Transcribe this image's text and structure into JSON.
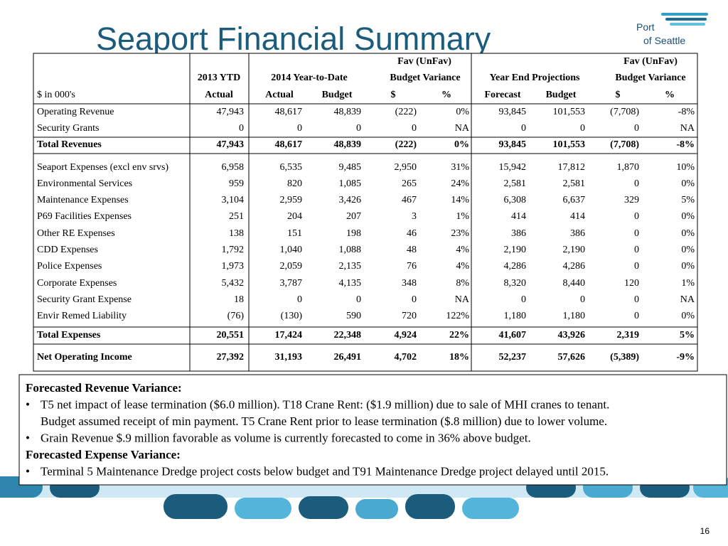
{
  "title": "Seaport Financial Summary",
  "logo": {
    "line1": "Port",
    "line2": "of Seattle"
  },
  "table": {
    "header": {
      "row1": [
        "Fav (UnFav)",
        "Fav (UnFav)"
      ],
      "row2": [
        "2013 YTD",
        "2014 Year-to-Date",
        "Budget Variance",
        "Year End Projections",
        "Budget Variance"
      ],
      "row3": [
        "$ in 000's",
        "Actual",
        "Actual",
        "Budget",
        "$",
        "%",
        "Forecast",
        "Budget",
        "$",
        "%"
      ]
    },
    "rows": [
      [
        "Operating Revenue",
        "47,943",
        "48,617",
        "48,839",
        "(222)",
        "0%",
        "93,845",
        "101,553",
        "(7,708)",
        "-8%"
      ],
      [
        "Security Grants",
        "0",
        "0",
        "0",
        "0",
        "NA",
        "0",
        "0",
        "0",
        "NA"
      ],
      [
        "Total Revenues",
        "47,943",
        "48,617",
        "48,839",
        "(222)",
        "0%",
        "93,845",
        "101,553",
        "(7,708)",
        "-8%"
      ],
      [
        "Seaport Expenses (excl env srvs)",
        "6,958",
        "6,535",
        "9,485",
        "2,950",
        "31%",
        "15,942",
        "17,812",
        "1,870",
        "10%"
      ],
      [
        "Environmental Services",
        "959",
        "820",
        "1,085",
        "265",
        "24%",
        "2,581",
        "2,581",
        "0",
        "0%"
      ],
      [
        "Maintenance Expenses",
        "3,104",
        "2,959",
        "3,426",
        "467",
        "14%",
        "6,308",
        "6,637",
        "329",
        "5%"
      ],
      [
        "P69 Facilities Expenses",
        "251",
        "204",
        "207",
        "3",
        "1%",
        "414",
        "414",
        "0",
        "0%"
      ],
      [
        "Other RE Expenses",
        "138",
        "151",
        "198",
        "46",
        "23%",
        "386",
        "386",
        "0",
        "0%"
      ],
      [
        "CDD Expenses",
        "1,792",
        "1,040",
        "1,088",
        "48",
        "4%",
        "2,190",
        "2,190",
        "0",
        "0%"
      ],
      [
        "Police Expenses",
        "1,973",
        "2,059",
        "2,135",
        "76",
        "4%",
        "4,286",
        "4,286",
        "0",
        "0%"
      ],
      [
        "Corporate Expenses",
        "5,432",
        "3,787",
        "4,135",
        "348",
        "8%",
        "8,320",
        "8,440",
        "120",
        "1%"
      ],
      [
        "Security Grant Expense",
        "18",
        "0",
        "0",
        "0",
        "NA",
        "0",
        "0",
        "0",
        "NA"
      ],
      [
        "Envir Remed Liability",
        "(76)",
        "(130)",
        "590",
        "720",
        "122%",
        "1,180",
        "1,180",
        "0",
        "0%"
      ],
      [
        "Total Expenses",
        "20,551",
        "17,424",
        "22,348",
        "4,924",
        "22%",
        "41,607",
        "43,926",
        "2,319",
        "5%"
      ],
      [
        "Net Operating Income",
        "27,392",
        "31,193",
        "26,491",
        "4,702",
        "18%",
        "52,237",
        "57,626",
        "(5,389)",
        "-9%"
      ]
    ]
  },
  "notes": {
    "revenue_heading": "Forecasted Revenue Variance:",
    "revenue_items": [
      {
        "lines": [
          "T5 net impact of lease termination ($6.0 million). T18 Crane Rent: ($1.9 million) due to sale of MHI cranes to tenant.",
          "Budget assumed receipt of  min payment.  T5 Crane Rent prior to lease termination ($.8 million) due to lower volume."
        ]
      },
      {
        "lines": [
          "Grain Revenue $.9 million favorable as volume is currently  forecasted  to come in 36% above budget."
        ]
      }
    ],
    "expense_heading": "Forecasted Expense Variance:",
    "expense_items": [
      {
        "lines": [
          "Terminal 5 Maintenance Dredge  project costs  below budget and T91 Maintenance Dredge project delayed until 2015."
        ]
      }
    ]
  },
  "page_number": "16"
}
